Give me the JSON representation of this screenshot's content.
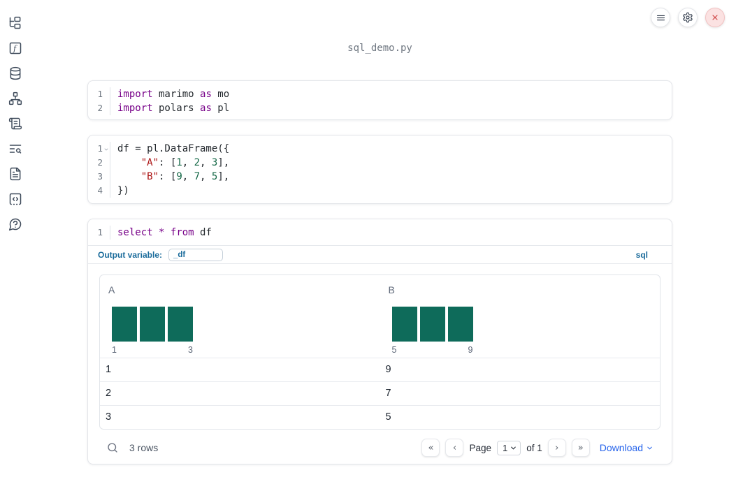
{
  "window": {
    "title": "sql_demo.py"
  },
  "topbar": {
    "buttons": [
      {
        "name": "menu"
      },
      {
        "name": "settings"
      },
      {
        "name": "close"
      }
    ]
  },
  "sidebar": {
    "items": [
      "file-tree",
      "function-square",
      "database",
      "dependency-graph",
      "scroll-text",
      "text-search",
      "file-text",
      "code-snippets",
      "help"
    ]
  },
  "colors": {
    "accent_blue": "#1a6b9b",
    "link_blue": "#2563eb",
    "histogram_teal": "#0e6b5a",
    "keyword_purple": "#770088",
    "string_red": "#aa1111",
    "number_green": "#116644",
    "close_red": "#cf4444"
  },
  "cells": [
    {
      "type": "python",
      "lines": [
        {
          "num": "1",
          "tokens": [
            [
              "kw",
              "import"
            ],
            [
              "pl",
              " marimo "
            ],
            [
              "kw",
              "as"
            ],
            [
              "pl",
              " mo"
            ]
          ]
        },
        {
          "num": "2",
          "tokens": [
            [
              "kw",
              "import"
            ],
            [
              "pl",
              " polars "
            ],
            [
              "kw",
              "as"
            ],
            [
              "pl",
              " pl"
            ]
          ]
        }
      ]
    },
    {
      "type": "python",
      "lines": [
        {
          "num": "1",
          "foldable": true,
          "tokens": [
            [
              "pl",
              "df = pl.DataFrame({"
            ]
          ]
        },
        {
          "num": "2",
          "tokens": [
            [
              "pl",
              "    "
            ],
            [
              "str",
              "\"A\""
            ],
            [
              "pl",
              ": ["
            ],
            [
              "num",
              "1"
            ],
            [
              "pl",
              ", "
            ],
            [
              "num",
              "2"
            ],
            [
              "pl",
              ", "
            ],
            [
              "num",
              "3"
            ],
            [
              "pl",
              "],"
            ]
          ]
        },
        {
          "num": "3",
          "tokens": [
            [
              "pl",
              "    "
            ],
            [
              "str",
              "\"B\""
            ],
            [
              "pl",
              ": ["
            ],
            [
              "num",
              "9"
            ],
            [
              "pl",
              ", "
            ],
            [
              "num",
              "7"
            ],
            [
              "pl",
              ", "
            ],
            [
              "num",
              "5"
            ],
            [
              "pl",
              "],"
            ]
          ]
        },
        {
          "num": "4",
          "tokens": [
            [
              "pl",
              "})"
            ]
          ]
        }
      ]
    },
    {
      "type": "sql",
      "lines": [
        {
          "num": "1",
          "tokens": [
            [
              "kw",
              "select"
            ],
            [
              "pl",
              " "
            ],
            [
              "kw",
              "*"
            ],
            [
              "pl",
              " "
            ],
            [
              "kw",
              "from"
            ],
            [
              "pl",
              " df"
            ]
          ]
        }
      ],
      "output_variable_label": "Output variable:",
      "output_variable_value": "_df",
      "language_badge": "sql"
    }
  ],
  "chart_data": [
    {
      "type": "bar",
      "title": "A",
      "values": [
        1,
        1,
        1
      ],
      "categories": [
        "1",
        "2",
        "3"
      ],
      "x_tick_labels": [
        "1",
        "3"
      ],
      "bar_color": "#0e6b5a"
    },
    {
      "type": "bar",
      "title": "B",
      "values": [
        1,
        1,
        1
      ],
      "categories": [
        "5",
        "7",
        "9"
      ],
      "x_tick_labels": [
        "5",
        "9"
      ],
      "bar_color": "#0e6b5a"
    }
  ],
  "table": {
    "columns": [
      "A",
      "B"
    ],
    "rows": [
      [
        "1",
        "9"
      ],
      [
        "2",
        "7"
      ],
      [
        "3",
        "5"
      ]
    ],
    "row_count": "3 rows",
    "pagination": {
      "first": "«",
      "prev": "‹",
      "page_label": "Page",
      "page_value": "1",
      "of_label": "of 1",
      "next": "›",
      "last": "»"
    },
    "download_label": "Download"
  }
}
